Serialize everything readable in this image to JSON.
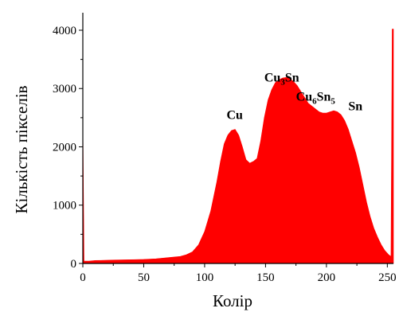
{
  "chart_data": {
    "type": "area",
    "title": "",
    "xlabel": "Колір",
    "ylabel": "Кількість пікселів",
    "xlim": [
      0,
      255
    ],
    "ylim": [
      0,
      4300
    ],
    "x_ticks": [
      0,
      50,
      100,
      150,
      200,
      250
    ],
    "y_ticks": [
      0,
      1000,
      2000,
      3000,
      4000
    ],
    "grid": false,
    "fill_color": "#ff0000",
    "series": [
      {
        "x": [
          0,
          1,
          5,
          10,
          20,
          30,
          40,
          50,
          60,
          70,
          80,
          85,
          90,
          95,
          100,
          105,
          110,
          113,
          116,
          119,
          122,
          125,
          128,
          131,
          134,
          137,
          140,
          143,
          146,
          149,
          152,
          155,
          158,
          161,
          164,
          167,
          170,
          173,
          176,
          179,
          182,
          185,
          188,
          191,
          194,
          197,
          200,
          203,
          206,
          209,
          212,
          215,
          218,
          221,
          224,
          227,
          230,
          233,
          236,
          239,
          242,
          245,
          248,
          251,
          253,
          254,
          255
        ],
        "y": [
          2450,
          40,
          40,
          50,
          55,
          60,
          65,
          70,
          80,
          100,
          120,
          150,
          200,
          320,
          550,
          900,
          1400,
          1750,
          2050,
          2200,
          2280,
          2300,
          2200,
          2000,
          1780,
          1720,
          1750,
          1800,
          2100,
          2500,
          2800,
          2980,
          3100,
          3150,
          3180,
          3190,
          3170,
          3120,
          3050,
          2950,
          2850,
          2750,
          2700,
          2650,
          2600,
          2580,
          2580,
          2600,
          2620,
          2600,
          2550,
          2450,
          2300,
          2100,
          1900,
          1650,
          1350,
          1050,
          800,
          600,
          450,
          320,
          220,
          150,
          120,
          4020,
          4020
        ]
      }
    ],
    "annotations": [
      {
        "text": "Cu",
        "x": 118,
        "y": 2480
      },
      {
        "text": "Cu",
        "sub": "3",
        "text2": "Sn",
        "x": 149,
        "y": 3120
      },
      {
        "text": "Cu",
        "sub": "6",
        "text2": "Sn",
        "sub2": "5",
        "x": 175,
        "y": 2790
      },
      {
        "text": "Sn",
        "x": 218,
        "y": 2630
      }
    ]
  }
}
